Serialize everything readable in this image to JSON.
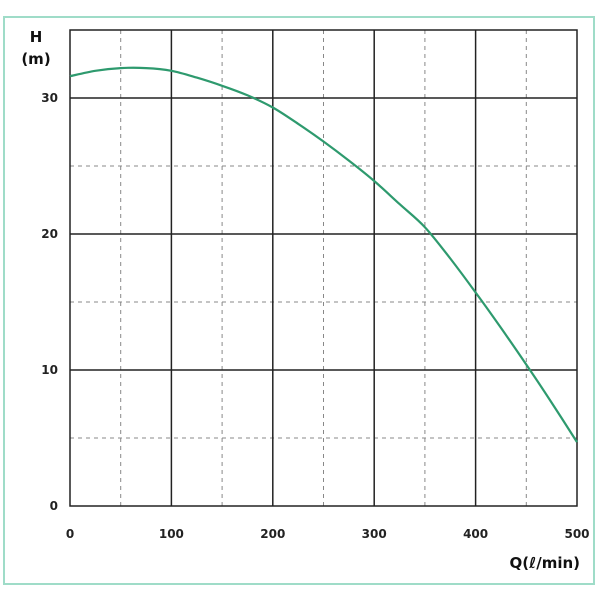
{
  "chart_data": {
    "type": "line",
    "title": "",
    "ylabel_line1": "H",
    "ylabel_line2": "(m)",
    "xlabel": "Q(ℓ/min)",
    "xlim": [
      0,
      500
    ],
    "ylim": [
      0,
      35
    ],
    "xticks": [
      0,
      100,
      200,
      300,
      400,
      500
    ],
    "yticks": [
      0,
      10,
      20,
      30
    ],
    "grid": true,
    "series": [
      {
        "color": "#2e9a6e",
        "x": [
          0,
          25,
          50,
          75,
          100,
          125,
          150,
          175,
          200,
          225,
          250,
          275,
          300,
          325,
          350,
          375,
          400,
          425,
          450,
          475,
          500
        ],
        "y": [
          31.6,
          32.0,
          32.2,
          32.2,
          32.0,
          31.5,
          30.9,
          30.2,
          29.3,
          28.1,
          26.8,
          25.4,
          23.9,
          22.2,
          20.5,
          18.2,
          15.7,
          13.1,
          10.4,
          7.6,
          4.7
        ]
      }
    ]
  }
}
